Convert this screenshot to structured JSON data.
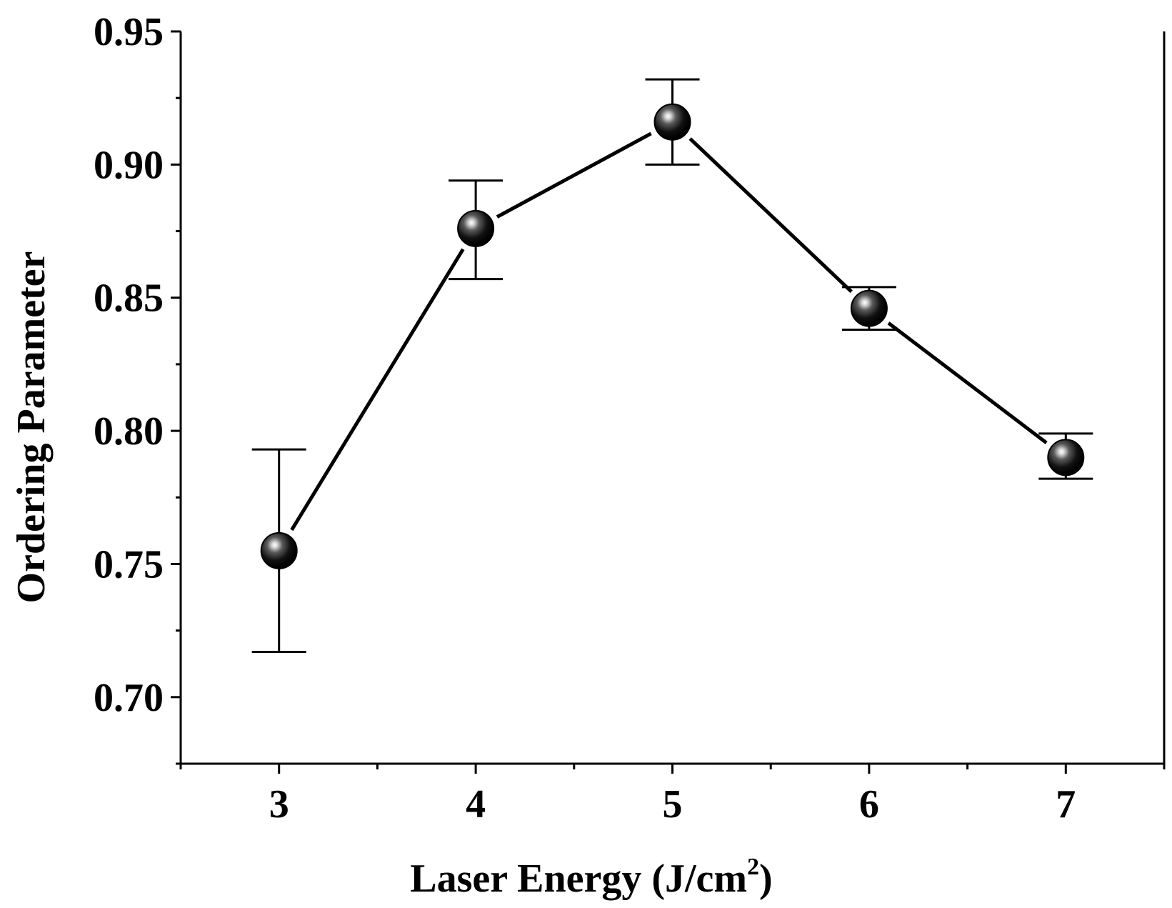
{
  "chart_data": {
    "type": "scatter",
    "xlabel_main": "Laser Energy (J/cm",
    "xlabel_sup": "2",
    "xlabel_end": ")",
    "ylabel": "Ordering Parameter",
    "xlim": [
      2.5,
      7.5
    ],
    "ylim": [
      0.675,
      0.95
    ],
    "x_ticks": [
      "3",
      "4",
      "5",
      "6",
      "7"
    ],
    "y_ticks": [
      "0.70",
      "0.75",
      "0.80",
      "0.85",
      "0.90",
      "0.95"
    ],
    "series": [
      {
        "x": [
          3,
          4,
          5,
          6,
          7
        ],
        "y": [
          0.755,
          0.876,
          0.916,
          0.846,
          0.79
        ],
        "y_err_low": [
          0.717,
          0.857,
          0.9,
          0.838,
          0.782
        ],
        "y_err_high": [
          0.793,
          0.894,
          0.932,
          0.854,
          0.799
        ]
      }
    ],
    "grid": false,
    "marker_color": "#000000",
    "line_color": "#000000"
  }
}
